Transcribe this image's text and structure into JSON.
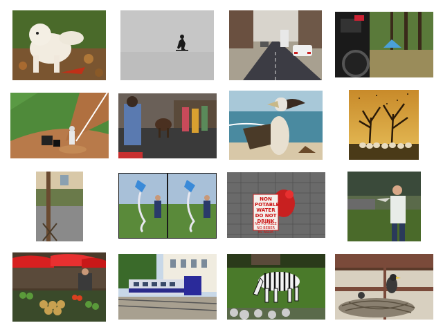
{
  "images": [
    {
      "id": "dog-on-leaves",
      "subject": "dog"
    },
    {
      "id": "snowboarder-on-snow",
      "subject": "snowboarder"
    },
    {
      "id": "street-with-car",
      "subject": "street"
    },
    {
      "id": "motorcycle-and-tent",
      "subject": "motorcycle"
    },
    {
      "id": "baseball-field",
      "subject": "baseball"
    },
    {
      "id": "street-crowd-with-cow",
      "subject": "crowd"
    },
    {
      "id": "pelican-on-beach",
      "subject": "pelican"
    },
    {
      "id": "sheep-under-trees",
      "subject": "sheep"
    },
    {
      "id": "building-with-pole",
      "subject": "building"
    },
    {
      "id": "kite-flyer-stereo",
      "subject": "kite"
    },
    {
      "id": "fire-hydrant-sign",
      "subject": "hydrant"
    },
    {
      "id": "man-with-model-plane",
      "subject": "man"
    },
    {
      "id": "market-stalls",
      "subject": "market"
    },
    {
      "id": "passenger-train",
      "subject": "train"
    },
    {
      "id": "zebra-grazing",
      "subject": "zebra"
    },
    {
      "id": "bird-nest",
      "subject": "bird"
    }
  ],
  "sign": {
    "line1": "NON\nPOTABLE\nWATER\nDO NOT\nDRINK",
    "line2": "NO POTABLE\nNO BEBER EL AGUA"
  }
}
